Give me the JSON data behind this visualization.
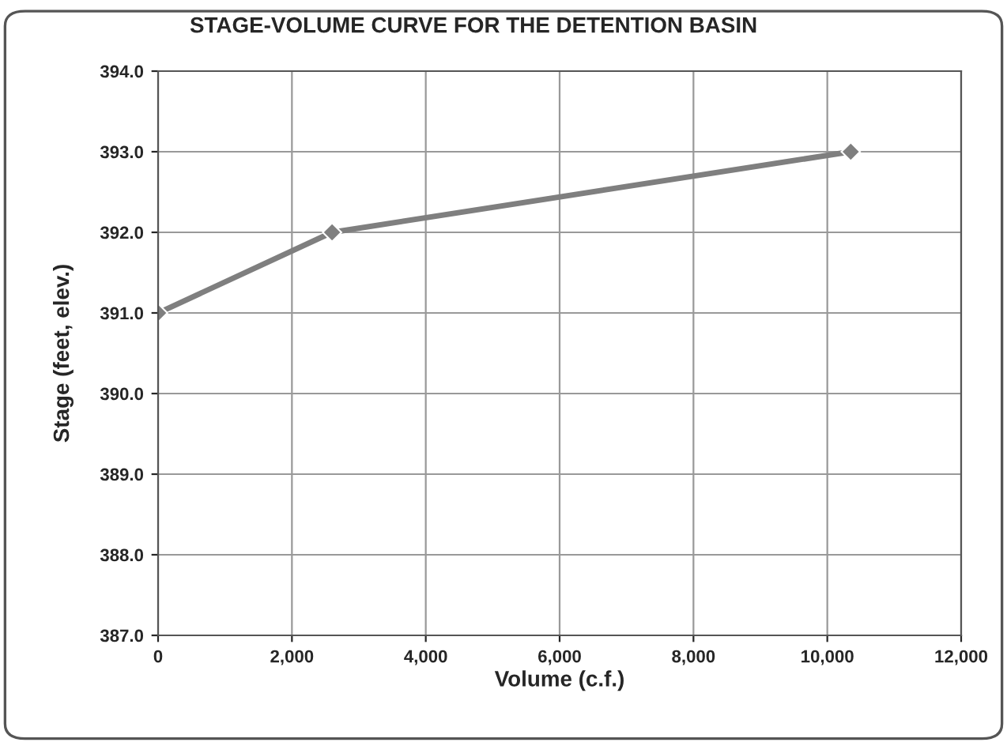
{
  "chart_data": {
    "type": "line",
    "title": "STAGE-VOLUME CURVE FOR THE DETENTION BASIN",
    "xlabel": "Volume (c.f.)",
    "ylabel": "Stage (feet, elev.)",
    "x": [
      0,
      2600,
      10350
    ],
    "series": [
      {
        "color": "#7f7f7f",
        "values": [
          391.0,
          392.0,
          393.0
        ]
      }
    ],
    "xlim": [
      0,
      12000
    ],
    "xticks": [
      0,
      {
        "value": 2000,
        "label": "2,000"
      },
      {
        "value": 4000,
        "label": "4,000"
      },
      {
        "value": 6000,
        "label": "6,000"
      },
      {
        "value": 8000,
        "label": "8,000"
      },
      {
        "value": 10000,
        "label": "10,000"
      },
      {
        "value": 12000,
        "label": "12,000"
      }
    ],
    "ylim": [
      387,
      394
    ],
    "yticks": [
      {
        "value": 387,
        "label": "387.0"
      },
      {
        "value": 388,
        "label": "388.0"
      },
      {
        "value": 389,
        "label": "389.0"
      },
      {
        "value": 390,
        "label": "390.0"
      },
      {
        "value": 391,
        "label": "391.0"
      },
      {
        "value": 392,
        "label": "392.0"
      },
      {
        "value": 393,
        "label": "393.0"
      },
      {
        "value": 394,
        "label": "394.0"
      }
    ],
    "grid": true,
    "marker": "diamond",
    "line_style": "solid"
  }
}
